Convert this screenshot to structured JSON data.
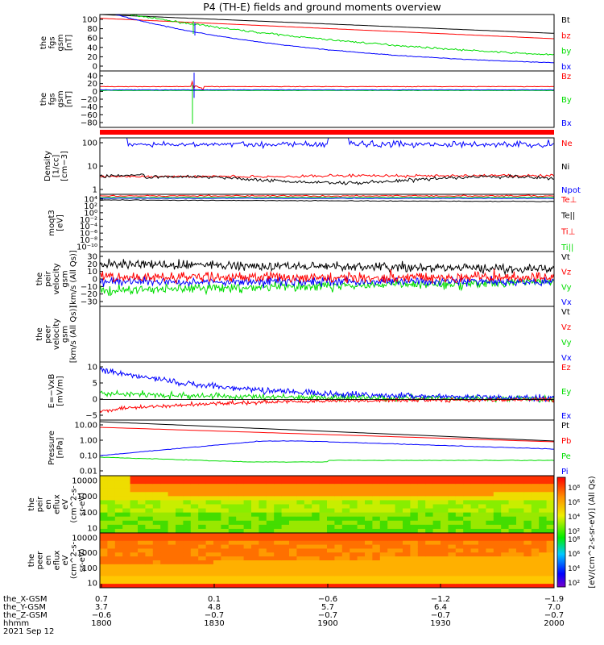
{
  "title": "P4 (TH-E) fields and ground moments overview",
  "colors": {
    "black": "#000000",
    "red": "#ff0000",
    "green": "#00dd00",
    "blue": "#0000ff"
  },
  "chart_data": [
    {
      "type": "line",
      "panel": "fgs_gsm_total",
      "ylabel_lines": [
        "the",
        "fgs",
        "gsm",
        "[nT]"
      ],
      "yticks": [
        "100",
        "80",
        "60",
        "40",
        "20",
        "0"
      ],
      "ylim": [
        0,
        105
      ],
      "legend": [
        {
          "name": "Bt",
          "color": "black"
        },
        {
          "name": "bz",
          "color": "red"
        },
        {
          "name": "by",
          "color": "green"
        },
        {
          "name": "bx",
          "color": "blue"
        }
      ]
    },
    {
      "type": "line",
      "panel": "fgs_gsm_dtrend",
      "ylabel_lines": [
        "the",
        "fgs",
        "gsm",
        "[nT]"
      ],
      "yticks": [
        "40",
        "20",
        "0",
        "−20",
        "−40",
        "−60",
        "−80"
      ],
      "ylim": [
        -88,
        42
      ],
      "legend": [
        {
          "name": "Bz",
          "color": "red"
        },
        {
          "name": "By",
          "color": "green"
        },
        {
          "name": "Bx",
          "color": "blue"
        }
      ]
    },
    {
      "type": "line",
      "panel": "density",
      "log": true,
      "ylabel_lines": [
        "Density",
        "[1/cc]",
        "[cm−3]"
      ],
      "yticks": [
        "100",
        "10",
        "1"
      ],
      "legend": [
        {
          "name": "Ne",
          "color": "red"
        },
        {
          "name": "Ni",
          "color": "black"
        },
        {
          "name": "Npot",
          "color": "blue"
        }
      ]
    },
    {
      "type": "line",
      "panel": "temperature",
      "log": true,
      "ylabel_lines": [
        "moqt3",
        "[eV]"
      ],
      "yticks": [
        "10⁴",
        "10²",
        "10⁰",
        "10⁻²",
        "10⁻⁴",
        "10⁻⁶",
        "10⁻⁸",
        "10⁻¹⁰"
      ],
      "legend": [
        {
          "name": "Te⊥",
          "color": "red"
        },
        {
          "name": "Te||",
          "color": "black"
        },
        {
          "name": "Ti⊥",
          "color": "red"
        },
        {
          "name": "Ti||",
          "color": "green"
        }
      ]
    },
    {
      "type": "line",
      "panel": "peir_velocity",
      "ylabel_lines": [
        "the",
        "peir",
        "velocity",
        "gsm",
        "[km/s (All Qs)]"
      ],
      "yticks": [
        "30",
        "20",
        "10",
        "0",
        "−10",
        "−20",
        "−30"
      ],
      "ylim": [
        -30,
        32
      ],
      "legend": [
        {
          "name": "Vt",
          "color": "black"
        },
        {
          "name": "Vz",
          "color": "red"
        },
        {
          "name": "Vy",
          "color": "green"
        },
        {
          "name": "Vx",
          "color": "blue"
        }
      ]
    },
    {
      "type": "line",
      "panel": "peer_velocity",
      "ylabel_lines": [
        "the",
        "peer",
        "velocity",
        "gsm",
        "[km/s (All Qs)]"
      ],
      "yticks": [],
      "legend": [
        {
          "name": "Vt",
          "color": "black"
        },
        {
          "name": "Vz",
          "color": "red"
        },
        {
          "name": "Vy",
          "color": "green"
        },
        {
          "name": "Vx",
          "color": "blue"
        }
      ]
    },
    {
      "type": "line",
      "panel": "efield",
      "ylabel_lines": [
        "E=−VxB",
        "[mV/m]"
      ],
      "yticks": [
        "10",
        "5",
        "0",
        "−5"
      ],
      "ylim": [
        -5.5,
        10
      ],
      "legend": [
        {
          "name": "Ez",
          "color": "red"
        },
        {
          "name": "Ey",
          "color": "green"
        },
        {
          "name": "Ex",
          "color": "blue"
        }
      ]
    },
    {
      "type": "line",
      "panel": "pressure",
      "log": true,
      "ylabel_lines": [
        "Pressure",
        "[nPa]"
      ],
      "yticks": [
        "10.00",
        "1.00",
        "0.10",
        "0.01"
      ],
      "legend": [
        {
          "name": "Pt",
          "color": "black"
        },
        {
          "name": "Pb",
          "color": "red"
        },
        {
          "name": "Pe",
          "color": "green"
        },
        {
          "name": "Pi",
          "color": "blue"
        }
      ]
    },
    {
      "type": "heatmap",
      "panel": "peir_eflux",
      "log": true,
      "ylabel_lines": [
        "the",
        "peir",
        "en",
        "eflux",
        "eV",
        "(cm^2-s-",
        "sr-eV)"
      ],
      "yticks": [
        "10000",
        "1000",
        "100",
        "10"
      ]
    },
    {
      "type": "heatmap",
      "panel": "peer_eflux",
      "log": true,
      "ylabel_lines": [
        "the",
        "peer",
        "en",
        "eflux",
        "eV",
        "(cm^2-s-",
        "sr-eV)"
      ],
      "yticks": [
        "10000",
        "1000",
        "100",
        "10"
      ]
    }
  ],
  "colorbar": {
    "label": "[eV/(cm^2-s-sr-eV)] (All Qs)",
    "top_ticks": [
      "10⁸",
      "10⁶",
      "10⁴",
      "10²"
    ],
    "bottom_ticks": [
      "10⁸",
      "10⁶",
      "10⁴",
      "10²"
    ]
  },
  "xaxis": {
    "row_labels": [
      "the_X-GSM",
      "the_Y-GSM",
      "the_Z-GSM",
      "hhmm"
    ],
    "ticks": [
      {
        "x": "0.7",
        "y": "3.7",
        "z": "−0.6",
        "hhmm": "1800"
      },
      {
        "x": "0.1",
        "y": "4.8",
        "z": "−0.7",
        "hhmm": "1830"
      },
      {
        "x": "−0.6",
        "y": "5.7",
        "z": "−0.7",
        "hhmm": "1900"
      },
      {
        "x": "−1.2",
        "y": "6.4",
        "z": "−0.7",
        "hhmm": "1930"
      },
      {
        "x": "−1.9",
        "y": "7.0",
        "z": "−0.7",
        "hhmm": "2000"
      }
    ],
    "date": "2021 Sep 12"
  }
}
